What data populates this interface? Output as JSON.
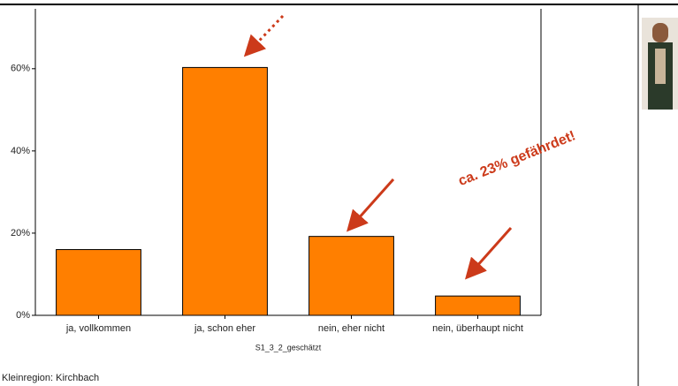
{
  "chart_data": {
    "type": "bar",
    "categories": [
      "ja, vollkommen",
      "ja, schon eher",
      "nein, eher nicht",
      "nein, überhaupt nicht"
    ],
    "values": [
      16,
      60.3,
      19.2,
      4.7
    ],
    "color": "#ff7f00",
    "ylim": [
      0,
      75
    ],
    "yticks": [
      {
        "value": 0,
        "label": "0%"
      },
      {
        "value": 20,
        "label": "20%"
      },
      {
        "value": 40,
        "label": "40%"
      },
      {
        "value": 60,
        "label": "60%"
      }
    ],
    "x_label": "S1_3_2_geschätzt",
    "annotation": "ca. 23% gefährdet!",
    "footer": "Kleinregion: Kirchbach"
  }
}
